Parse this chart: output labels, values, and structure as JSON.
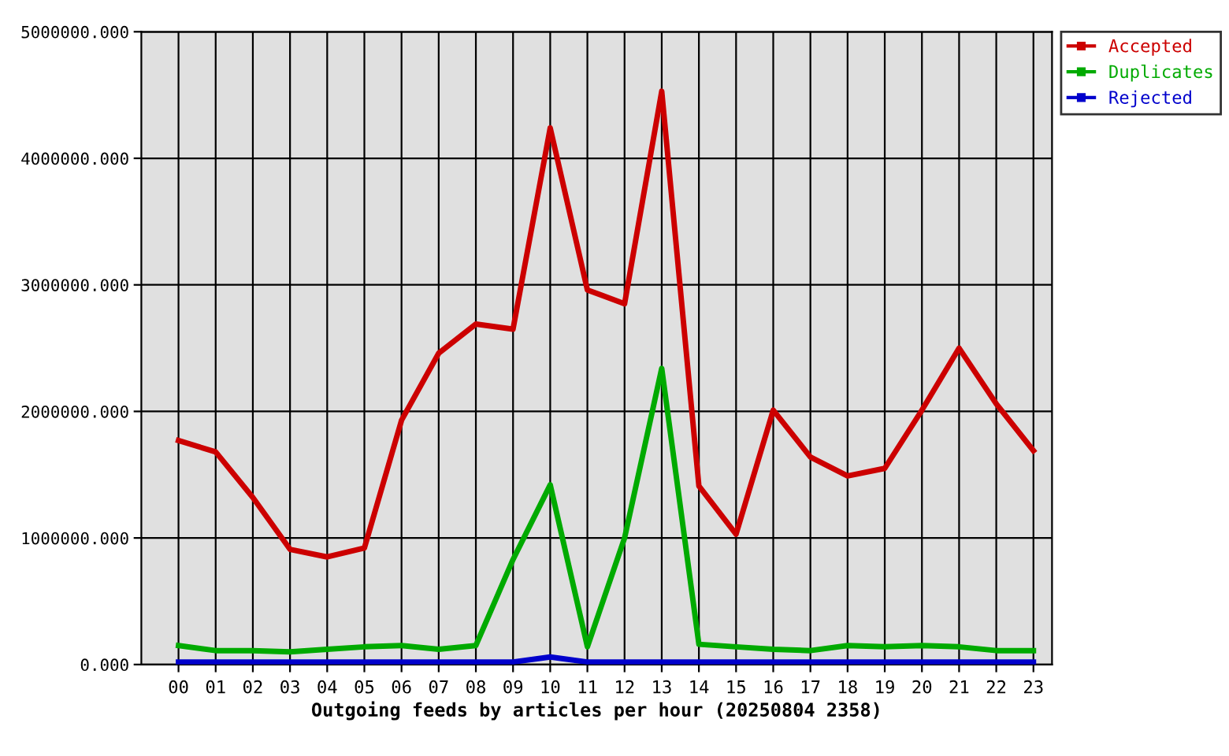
{
  "chart_data": {
    "type": "line",
    "xlabel": "Outgoing feeds by articles per hour (20250804 2358)",
    "categories": [
      "00",
      "01",
      "02",
      "03",
      "04",
      "05",
      "06",
      "07",
      "08",
      "09",
      "10",
      "11",
      "12",
      "13",
      "14",
      "15",
      "16",
      "17",
      "18",
      "19",
      "20",
      "21",
      "22",
      "23"
    ],
    "series": [
      {
        "name": "Accepted",
        "color": "#cc0000",
        "values": [
          1770000,
          1680000,
          1320000,
          910000,
          850000,
          920000,
          1930000,
          2460000,
          2690000,
          2650000,
          4240000,
          2960000,
          2850000,
          4530000,
          1410000,
          1030000,
          2010000,
          1640000,
          1490000,
          1550000,
          2010000,
          2500000,
          2060000,
          1690000
        ]
      },
      {
        "name": "Duplicates",
        "color": "#00aa00",
        "values": [
          150000,
          110000,
          110000,
          100000,
          120000,
          140000,
          150000,
          120000,
          150000,
          830000,
          1420000,
          140000,
          1000000,
          2340000,
          160000,
          140000,
          120000,
          110000,
          150000,
          140000,
          150000,
          140000,
          110000,
          110000
        ]
      },
      {
        "name": "Rejected",
        "color": "#0000cc",
        "values": [
          20000,
          20000,
          20000,
          20000,
          20000,
          20000,
          20000,
          20000,
          20000,
          20000,
          60000,
          20000,
          20000,
          20000,
          20000,
          20000,
          20000,
          20000,
          20000,
          20000,
          20000,
          20000,
          20000,
          20000
        ]
      }
    ],
    "ylim": [
      0,
      5000000
    ],
    "yticks": [
      {
        "value": 0,
        "label": "0.000"
      },
      {
        "value": 1000000,
        "label": "1000000.000"
      },
      {
        "value": 2000000,
        "label": "2000000.000"
      },
      {
        "value": 3000000,
        "label": "3000000.000"
      },
      {
        "value": 4000000,
        "label": "4000000.000"
      },
      {
        "value": 5000000,
        "label": "5000000.000"
      }
    ],
    "grid": true,
    "legend": "top right",
    "line_style": "solid"
  }
}
